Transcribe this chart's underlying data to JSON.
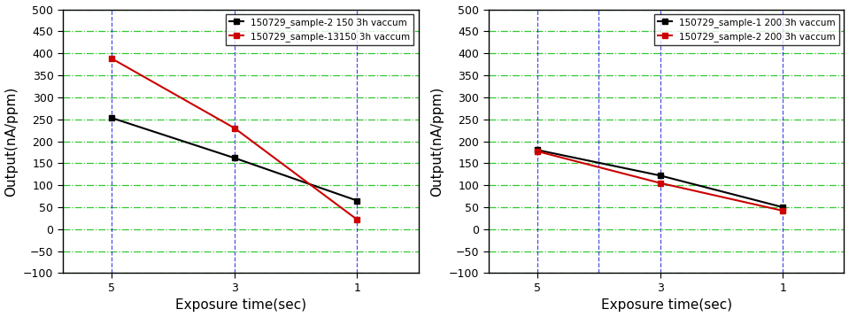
{
  "left_plot": {
    "series": [
      {
        "label": "150729_sample-2 150 3h vaccum",
        "color": "#000000",
        "x": [
          5,
          3,
          1
        ],
        "y": [
          253,
          162,
          65
        ]
      },
      {
        "label": "150729_sample-13150 3h vaccum",
        "color": "#cc0000",
        "x": [
          5,
          3,
          1
        ],
        "y": [
          388,
          230,
          22
        ]
      }
    ],
    "xlabel": "Exposure time(sec)",
    "ylabel": "Output(nA/ppm)",
    "ylim": [
      -100,
      500
    ],
    "yticks": [
      -100,
      -50,
      0,
      50,
      100,
      150,
      200,
      250,
      300,
      350,
      400,
      450,
      500
    ],
    "xticks": [
      5,
      3,
      1
    ],
    "blue_vlines": [
      5,
      3,
      1
    ],
    "xlim": [
      0.0,
      5.8
    ]
  },
  "right_plot": {
    "series": [
      {
        "label": "150729_sample-1 200 3h vaccum",
        "color": "#000000",
        "x": [
          5,
          3,
          1
        ],
        "y": [
          180,
          122,
          50
        ]
      },
      {
        "label": "150729_sample-2 200 3h vaccum",
        "color": "#cc0000",
        "x": [
          5,
          3,
          1
        ],
        "y": [
          177,
          105,
          42
        ]
      }
    ],
    "xlabel": "Exposure time(sec)",
    "ylabel": "Output(nA/ppm)",
    "ylim": [
      -100,
      500
    ],
    "yticks": [
      -100,
      -50,
      0,
      50,
      100,
      150,
      200,
      250,
      300,
      350,
      400,
      450,
      500
    ],
    "xticks": [
      5,
      3,
      1
    ],
    "blue_vlines": [
      5,
      4,
      3,
      1
    ],
    "xlim": [
      0.0,
      5.8
    ]
  },
  "marker": "s",
  "markersize": 5,
  "linewidth": 1.5,
  "grid_green_color": "#00bb00",
  "grid_blue_color": "#0000dd",
  "grid_green_alpha": 0.8,
  "grid_blue_alpha": 0.7,
  "grid_linewidth": 0.9,
  "grid_linestyle_green": "-.",
  "grid_linestyle_blue": "--",
  "legend_fontsize": 7.5,
  "label_fontsize": 11,
  "tick_fontsize": 9,
  "figsize": [
    9.59,
    3.58
  ],
  "dpi": 100
}
